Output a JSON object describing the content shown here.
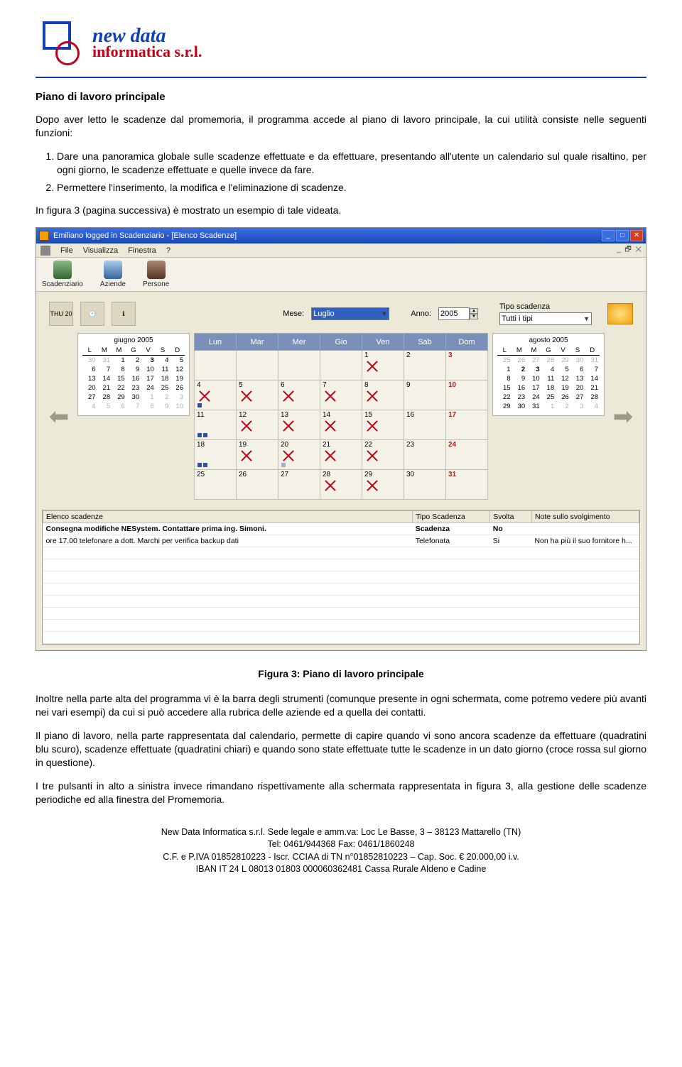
{
  "logo": {
    "line1": "new data",
    "line2": "informatica s.r.l."
  },
  "section_title": "Piano di lavoro principale",
  "intro": "Dopo aver letto le scadenze dal promemoria, il programma accede al piano di lavoro principale, la cui utilità consiste nelle seguenti funzioni:",
  "items": [
    "Dare una panoramica globale sulle scadenze effettuate e da effettuare, presentando all'utente un calendario sul quale risaltino, per ogni giorno, le scadenze effettuate e quelle invece da fare.",
    "Permettere l'inserimento, la modifica e l'eliminazione di scadenze."
  ],
  "para2": "In figura 3 (pagina successiva) è mostrato un esempio di tale videata.",
  "caption": "Figura 3: Piano di lavoro principale",
  "para3": "Inoltre nella parte alta del programma vi è la barra degli strumenti (comunque presente in ogni schermata, come potremo vedere più avanti nei vari esempi) da cui si può accedere alla rubrica delle aziende ed a quella dei contatti.",
  "para4": "Il piano di lavoro, nella parte rappresentata dal calendario, permette di capire quando vi sono ancora scadenze da effettuare (quadratini blu scuro), scadenze effettuate (quadratini chiari) e quando sono state effettuate tutte le scadenze in un dato giorno (croce rossa sul giorno in questione).",
  "para5": "I tre pulsanti in alto a sinistra invece rimandano rispettivamente alla schermata rappresentata in figura 3, alla gestione delle scadenze periodiche ed alla finestra del Promemoria.",
  "footer": {
    "l1": "New Data Informatica s.r.l.  Sede legale e amm.va: Loc Le Basse, 3 – 38123 Mattarello (TN)",
    "l2": "Tel: 0461/944368   Fax: 0461/1860248",
    "l3": "C.F.  e  P.IVA 01852810223 -  Iscr.  CCIAA di TN n°01852810223 – Cap. Soc. € 20.000,00 i.v.",
    "l4": "IBAN IT 24 L 08013 01803 000060362481 Cassa Rurale Aldeno e Cadine"
  },
  "shot": {
    "title": "Emiliano logged in Scadenziario - [Elenco Scadenze]",
    "menu": {
      "file": "File",
      "visualizza": "Visualizza",
      "finestra": "Finestra",
      "help": "?"
    },
    "toolbar": {
      "b1": "Scadenziario",
      "b2": "Aziende",
      "b3": "Persone"
    },
    "controls": {
      "mese_label": "Mese:",
      "mese_value": "Luglio",
      "anno_label": "Anno:",
      "anno_value": "2005",
      "tipo_label": "Tipo scadenza",
      "tipo_value": "Tutti i tipi",
      "ico1": "THU 20"
    },
    "weekdays": [
      "Lun",
      "Mar",
      "Mer",
      "Gio",
      "Ven",
      "Sab",
      "Dom"
    ],
    "mini_prev": {
      "title": "giugno 2005",
      "head": [
        "L",
        "M",
        "M",
        "G",
        "V",
        "S",
        "D"
      ],
      "rows": [
        [
          [
            30,
            "off"
          ],
          [
            31,
            "off"
          ],
          [
            1,
            ""
          ],
          [
            2,
            ""
          ],
          [
            3,
            "bold"
          ],
          [
            4,
            ""
          ],
          [
            5,
            ""
          ]
        ],
        [
          [
            6,
            ""
          ],
          [
            7,
            ""
          ],
          [
            8,
            ""
          ],
          [
            9,
            ""
          ],
          [
            10,
            ""
          ],
          [
            11,
            ""
          ],
          [
            12,
            ""
          ]
        ],
        [
          [
            13,
            ""
          ],
          [
            14,
            ""
          ],
          [
            15,
            ""
          ],
          [
            16,
            ""
          ],
          [
            17,
            ""
          ],
          [
            18,
            ""
          ],
          [
            19,
            ""
          ]
        ],
        [
          [
            20,
            ""
          ],
          [
            21,
            ""
          ],
          [
            22,
            ""
          ],
          [
            23,
            ""
          ],
          [
            24,
            ""
          ],
          [
            25,
            ""
          ],
          [
            26,
            ""
          ]
        ],
        [
          [
            27,
            ""
          ],
          [
            28,
            ""
          ],
          [
            29,
            ""
          ],
          [
            30,
            ""
          ],
          [
            1,
            "off"
          ],
          [
            2,
            "off"
          ],
          [
            3,
            "off"
          ]
        ],
        [
          [
            4,
            "off"
          ],
          [
            5,
            "off"
          ],
          [
            6,
            "off"
          ],
          [
            7,
            "off"
          ],
          [
            8,
            "off"
          ],
          [
            9,
            "off"
          ],
          [
            10,
            "off"
          ]
        ]
      ]
    },
    "mini_next": {
      "title": "agosto 2005",
      "head": [
        "L",
        "M",
        "M",
        "G",
        "V",
        "S",
        "D"
      ],
      "rows": [
        [
          [
            25,
            "off"
          ],
          [
            26,
            "off"
          ],
          [
            27,
            "off"
          ],
          [
            28,
            "off"
          ],
          [
            29,
            "off"
          ],
          [
            30,
            "off"
          ],
          [
            31,
            "off"
          ]
        ],
        [
          [
            1,
            ""
          ],
          [
            2,
            "bold"
          ],
          [
            3,
            "bold"
          ],
          [
            4,
            ""
          ],
          [
            5,
            ""
          ],
          [
            6,
            ""
          ],
          [
            7,
            ""
          ]
        ],
        [
          [
            8,
            ""
          ],
          [
            9,
            ""
          ],
          [
            10,
            ""
          ],
          [
            11,
            ""
          ],
          [
            12,
            ""
          ],
          [
            13,
            ""
          ],
          [
            14,
            ""
          ]
        ],
        [
          [
            15,
            ""
          ],
          [
            16,
            ""
          ],
          [
            17,
            ""
          ],
          [
            18,
            ""
          ],
          [
            19,
            ""
          ],
          [
            20,
            ""
          ],
          [
            21,
            ""
          ]
        ],
        [
          [
            22,
            ""
          ],
          [
            23,
            ""
          ],
          [
            24,
            ""
          ],
          [
            25,
            ""
          ],
          [
            26,
            ""
          ],
          [
            27,
            ""
          ],
          [
            28,
            ""
          ]
        ],
        [
          [
            29,
            ""
          ],
          [
            30,
            ""
          ],
          [
            31,
            ""
          ],
          [
            1,
            "off"
          ],
          [
            2,
            "off"
          ],
          [
            3,
            "off"
          ],
          [
            4,
            "off"
          ]
        ]
      ]
    },
    "main_cal": [
      [
        null,
        null,
        null,
        null,
        {
          "n": 1,
          "x": true
        },
        {
          "n": 2
        },
        {
          "n": 3,
          "sun": true
        }
      ],
      [
        {
          "n": 4,
          "x": true,
          "d": [
            1
          ]
        },
        {
          "n": 5,
          "x": true
        },
        {
          "n": 6,
          "x": true
        },
        {
          "n": 7,
          "x": true
        },
        {
          "n": 8,
          "x": true
        },
        {
          "n": 9
        },
        {
          "n": 10,
          "sun": true
        }
      ],
      [
        {
          "n": 11,
          "d": [
            1,
            1
          ]
        },
        {
          "n": 12,
          "x": true
        },
        {
          "n": 13,
          "x": true
        },
        {
          "n": 14,
          "x": true
        },
        {
          "n": 15,
          "x": true
        },
        {
          "n": 16
        },
        {
          "n": 17,
          "sun": true
        }
      ],
      [
        {
          "n": 18,
          "d": [
            1,
            1
          ]
        },
        {
          "n": 19,
          "x": true
        },
        {
          "n": 20,
          "x": true,
          "d": [
            0
          ]
        },
        {
          "n": 21,
          "x": true
        },
        {
          "n": 22,
          "x": true
        },
        {
          "n": 23
        },
        {
          "n": 24,
          "sun": true
        }
      ],
      [
        {
          "n": 25
        },
        {
          "n": 26
        },
        {
          "n": 27
        },
        {
          "n": 28,
          "x": true
        },
        {
          "n": 29,
          "x": true
        },
        {
          "n": 30
        },
        {
          "n": 31,
          "sun": true
        }
      ]
    ],
    "list": {
      "cols": [
        "Elenco scadenze",
        "Tipo Scadenza",
        "Svolta",
        "Note sullo svolgimento"
      ],
      "rows": [
        {
          "c": [
            "Consegna modifiche NESystem. Contattare prima ing. Simoni.",
            "Scadenza",
            "No",
            ""
          ],
          "bold": true
        },
        {
          "c": [
            "ore 17.00 telefonare a dott. Marchi per verifica backup dati",
            "Telefonata",
            "Si",
            "Non ha più il suo fornitore h..."
          ],
          "bold": false
        }
      ]
    }
  }
}
